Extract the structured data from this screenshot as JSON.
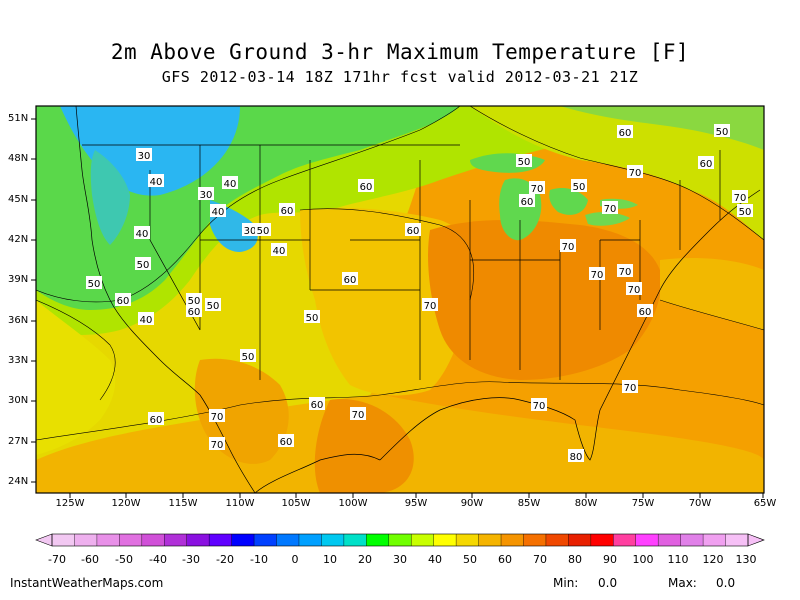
{
  "header": {
    "title": "2m Above Ground 3-hr Maximum Temperature [F]",
    "subtitle": "GFS 2012-03-14 18Z 171hr fcst valid 2012-03-21 21Z"
  },
  "map": {
    "lat_labels": [
      "51N",
      "48N",
      "45N",
      "42N",
      "39N",
      "36N",
      "33N",
      "30N",
      "27N",
      "24N"
    ],
    "lon_labels": [
      "125W",
      "120W",
      "115W",
      "110W",
      "105W",
      "100W",
      "95W",
      "90W",
      "85W",
      "80W",
      "75W",
      "70W",
      "65W"
    ],
    "contour_labels": [
      "30",
      "40",
      "30",
      "40",
      "40",
      "40",
      "30",
      "50",
      "60",
      "50",
      "50",
      "50",
      "60",
      "50",
      "60",
      "40",
      "40",
      "50",
      "50",
      "60",
      "50",
      "70",
      "70",
      "60",
      "60",
      "50",
      "50",
      "70",
      "60",
      "70",
      "60",
      "70",
      "70",
      "60",
      "70",
      "70",
      "70",
      "70",
      "70",
      "60",
      "80",
      "50",
      "60",
      "60",
      "60",
      "70",
      "70",
      "70"
    ],
    "colors": {
      "cold_blue": "#2ab6f2",
      "green": "#5fe05f",
      "yellow": "#e8e400",
      "yellow_orange": "#f2c400",
      "orange": "#f5a000",
      "dark_orange": "#ef8000"
    }
  },
  "colorbar": {
    "labels": [
      "-70",
      "-60",
      "-50",
      "-40",
      "-30",
      "-20",
      "-10",
      "0",
      "10",
      "20",
      "30",
      "40",
      "50",
      "60",
      "70",
      "80",
      "90",
      "100",
      "110",
      "120",
      "130"
    ],
    "colors": [
      "#f2c8f2",
      "#eeb0ee",
      "#e890e8",
      "#e070e0",
      "#d050d8",
      "#b030d8",
      "#8a10e0",
      "#6000ff",
      "#0000ff",
      "#0040ff",
      "#0078ff",
      "#00a0ff",
      "#00c8f0",
      "#00e0c8",
      "#00ff00",
      "#70ff00",
      "#c8ff00",
      "#ffff00",
      "#f5d800",
      "#f5b400",
      "#f59400",
      "#f57000",
      "#f04800",
      "#e82000",
      "#ff0000",
      "#ff3fa0",
      "#ff40ff",
      "#e060e0",
      "#e080e8",
      "#f0a0f0",
      "#f6c0f6"
    ]
  },
  "footer": {
    "site": "InstantWeatherMaps.com",
    "min_label": "Min:",
    "min_value": "0.0",
    "max_label": "Max:",
    "max_value": "0.0"
  }
}
